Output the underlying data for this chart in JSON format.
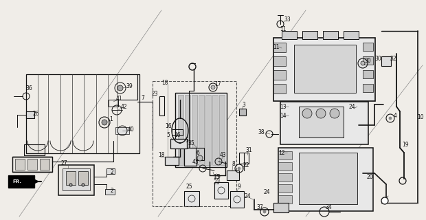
{
  "bg_color": "#f5f5f0",
  "line_color": "#1a1a1a",
  "fig_width": 6.2,
  "fig_height": 3.2,
  "dpi": 100,
  "img_b64": ""
}
